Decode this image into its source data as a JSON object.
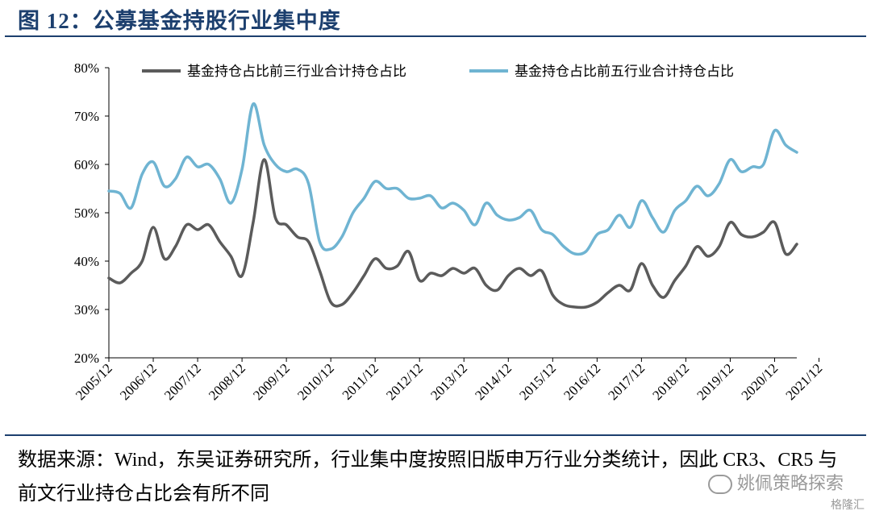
{
  "title": "图 12：公募基金持股行业集中度",
  "source_note": "数据来源：Wind，东吴证券研究所，行业集中度按照旧版申万行业分类统计，因此 CR3、CR5 与前文行业持仓占比会有所不同",
  "watermark_text": "姚佩策略探索",
  "logo_text": "格隆汇",
  "colors": {
    "series1": "#5b5b5b",
    "series2": "#6fb4d2",
    "title": "#1c3f6e"
  },
  "chart_data": {
    "type": "line",
    "x_start": "2005/12",
    "x_frequency": "quarterly",
    "x_ticks": [
      "2005/12",
      "2006/12",
      "2007/12",
      "2008/12",
      "2009/12",
      "2010/12",
      "2011/12",
      "2012/12",
      "2013/12",
      "2014/12",
      "2015/12",
      "2016/12",
      "2017/12",
      "2018/12",
      "2019/12",
      "2020/12",
      "2021/12"
    ],
    "y_ticks": [
      "20%",
      "30%",
      "40%",
      "50%",
      "60%",
      "70%",
      "80%"
    ],
    "ylim": [
      20,
      80
    ],
    "grid": false,
    "legend_position": "top",
    "series": [
      {
        "name": "基金持仓占比前三行业合计持仓占比",
        "values": [
          36.5,
          35.5,
          37.5,
          40,
          47,
          40.5,
          43,
          47.5,
          46.5,
          47.5,
          44,
          41,
          37,
          48,
          61,
          49,
          47.5,
          45,
          44,
          38,
          31.5,
          31,
          33.5,
          37,
          40.5,
          38.5,
          39,
          42,
          36,
          37.5,
          37,
          38.5,
          37.5,
          38.5,
          35,
          34,
          37,
          38.5,
          37,
          38,
          33,
          31,
          30.5,
          30.5,
          31.5,
          33.5,
          35,
          34,
          39.5,
          35,
          32.5,
          36,
          39,
          43,
          41,
          43,
          48,
          45.5,
          45,
          46,
          48,
          41.5,
          43.5
        ]
      },
      {
        "name": "基金持仓占比前五行业合计持仓占比",
        "values": [
          54.5,
          54,
          51,
          58,
          60.5,
          55.5,
          57,
          61.5,
          59.5,
          60,
          57,
          52,
          59,
          72.5,
          64,
          60,
          58.5,
          59,
          56,
          44,
          42.5,
          45,
          50,
          53,
          56.5,
          55,
          55,
          53,
          53,
          53.5,
          51,
          52,
          50.5,
          47.5,
          52,
          49.5,
          48.5,
          49,
          50.5,
          46.5,
          45.5,
          43,
          41.5,
          42,
          45.5,
          46.5,
          49.5,
          47,
          52.5,
          49,
          46,
          50.5,
          52.5,
          55.5,
          53.5,
          56,
          61,
          58.5,
          59.5,
          60,
          67,
          64,
          62.5
        ]
      }
    ]
  }
}
